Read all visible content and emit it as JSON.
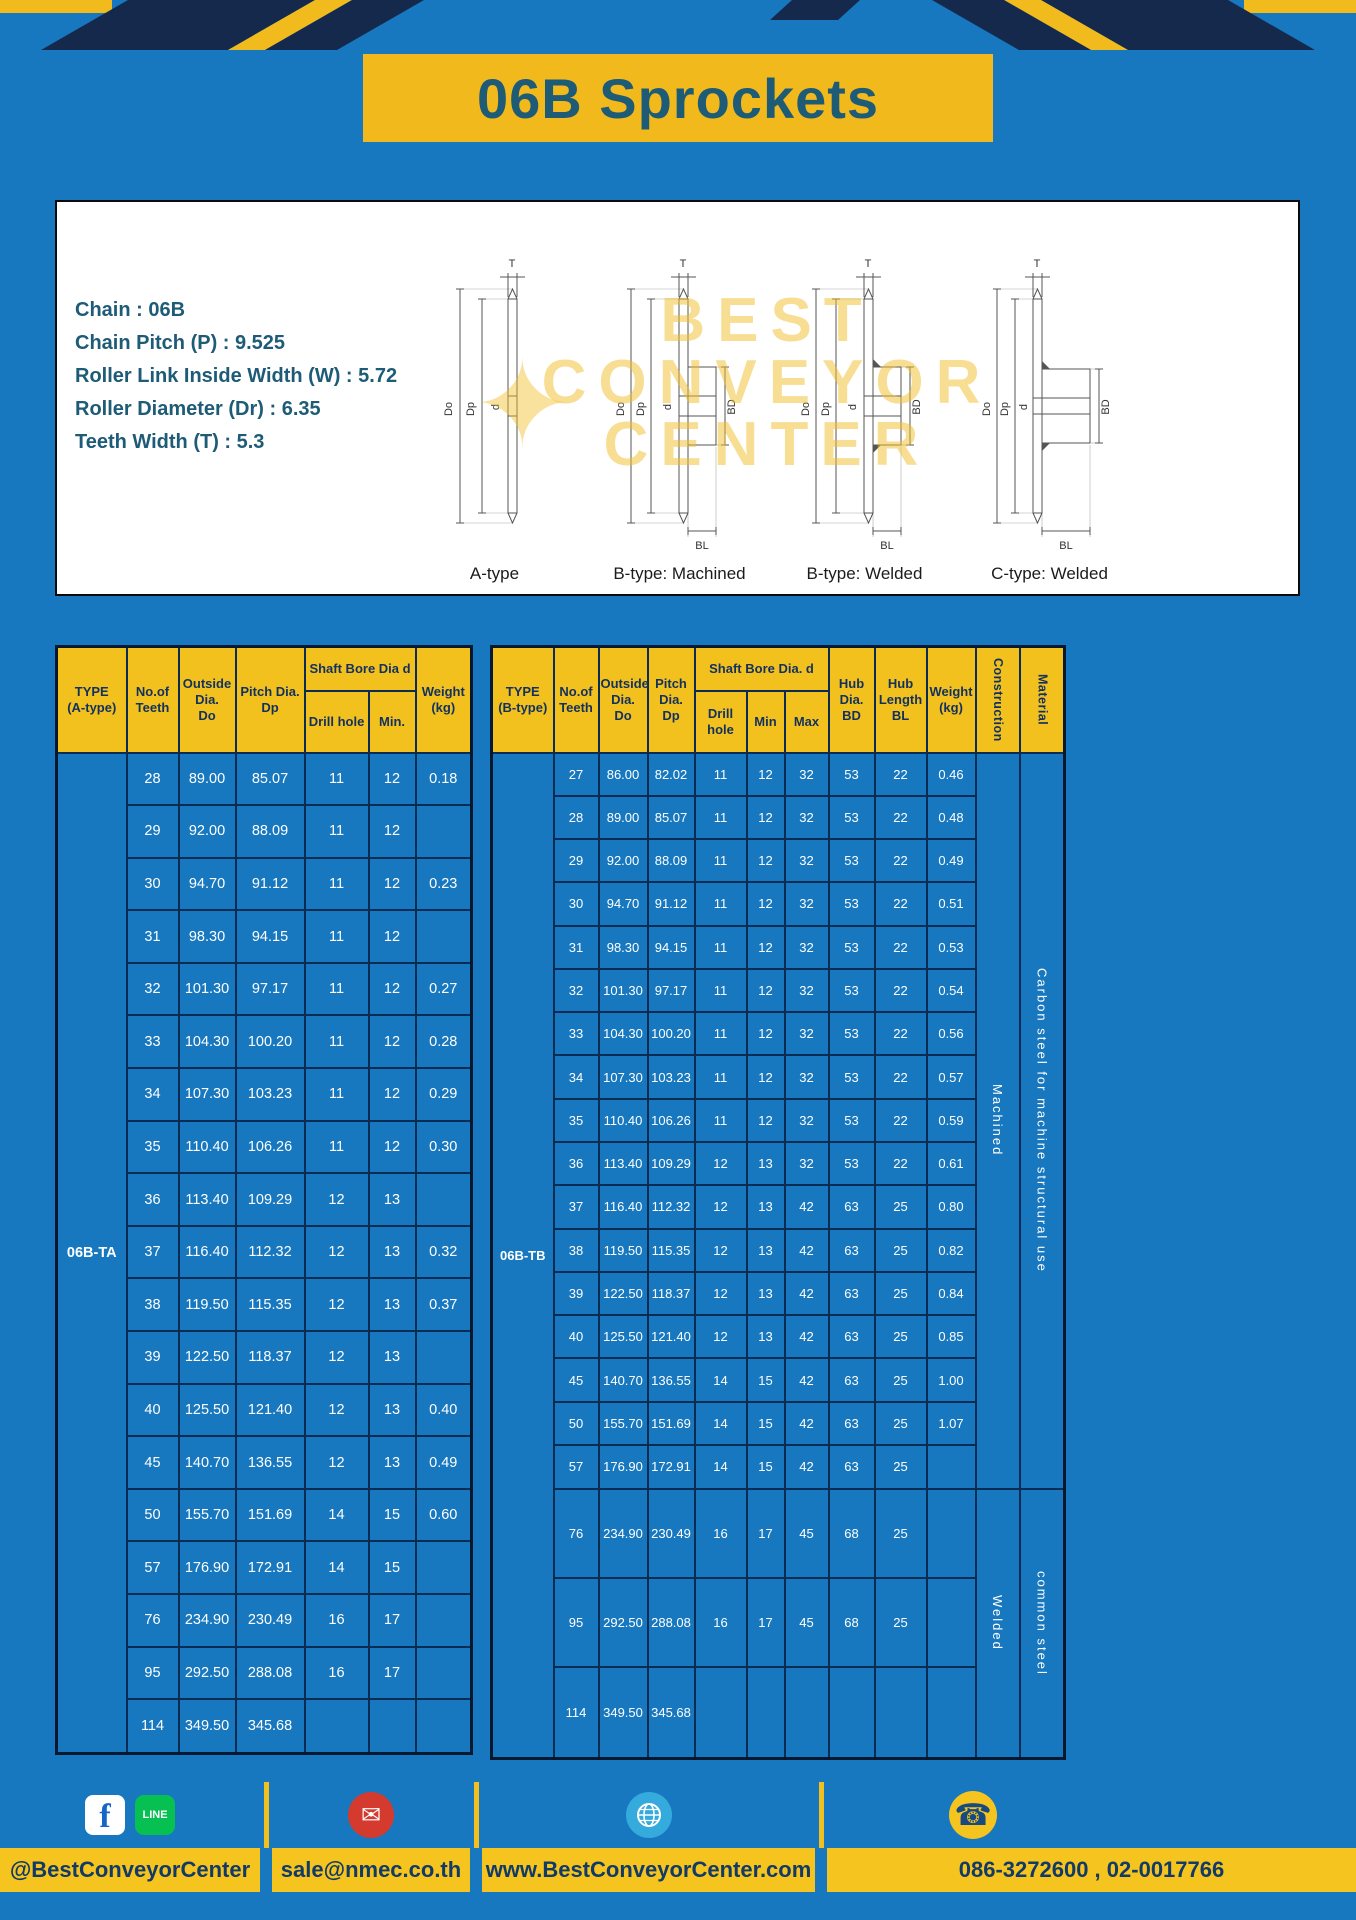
{
  "page": {
    "title": "06B Sprockets"
  },
  "specs": {
    "lines": [
      "Chain : 06B",
      "Chain Pitch (P) : 9.525",
      "Roller Link Inside Width (W) : 5.72",
      "Roller Diameter (Dr) : 6.35",
      "Teeth Width (T) : 5.3"
    ]
  },
  "drawings": {
    "captions": [
      "A-type",
      "B-type: Machined",
      "B-type: Welded",
      "C-type: Welded"
    ],
    "dim": {
      "t": "T",
      "do": "Do",
      "dp": "Dp",
      "d": "d",
      "bd": "BD",
      "bl": "BL"
    },
    "watermark": [
      "BEST",
      "CONVEYOR",
      "CENTER"
    ]
  },
  "table_a": {
    "type_label": "06B-TA",
    "headers": {
      "type": "TYPE\n(A-type)",
      "teeth": "No.of\nTeeth",
      "outside": "Outside\nDia.\nDo",
      "pitch": "Pitch Dia.\nDp",
      "bore_group": "Shaft Bore Dia d",
      "drill": "Drill hole",
      "min": "Min.",
      "weight": "Weight\n(kg)"
    },
    "rows": [
      [
        "28",
        "89.00",
        "85.07",
        "11",
        "12",
        "0.18"
      ],
      [
        "29",
        "92.00",
        "88.09",
        "11",
        "12",
        ""
      ],
      [
        "30",
        "94.70",
        "91.12",
        "11",
        "12",
        "0.23"
      ],
      [
        "31",
        "98.30",
        "94.15",
        "11",
        "12",
        ""
      ],
      [
        "32",
        "101.30",
        "97.17",
        "11",
        "12",
        "0.27"
      ],
      [
        "33",
        "104.30",
        "100.20",
        "11",
        "12",
        "0.28"
      ],
      [
        "34",
        "107.30",
        "103.23",
        "11",
        "12",
        "0.29"
      ],
      [
        "35",
        "110.40",
        "106.26",
        "11",
        "12",
        "0.30"
      ],
      [
        "36",
        "113.40",
        "109.29",
        "12",
        "13",
        ""
      ],
      [
        "37",
        "116.40",
        "112.32",
        "12",
        "13",
        "0.32"
      ],
      [
        "38",
        "119.50",
        "115.35",
        "12",
        "13",
        "0.37"
      ],
      [
        "39",
        "122.50",
        "118.37",
        "12",
        "13",
        ""
      ],
      [
        "40",
        "125.50",
        "121.40",
        "12",
        "13",
        "0.40"
      ],
      [
        "45",
        "140.70",
        "136.55",
        "12",
        "13",
        "0.49"
      ],
      [
        "50",
        "155.70",
        "151.69",
        "14",
        "15",
        "0.60"
      ],
      [
        "57",
        "176.90",
        "172.91",
        "14",
        "15",
        ""
      ],
      [
        "76",
        "234.90",
        "230.49",
        "16",
        "17",
        ""
      ],
      [
        "95",
        "292.50",
        "288.08",
        "16",
        "17",
        ""
      ],
      [
        "114",
        "349.50",
        "345.68",
        "",
        "",
        ""
      ]
    ]
  },
  "table_b": {
    "type_label": "06B-TB",
    "headers": {
      "type": "TYPE\n(B-type)",
      "teeth": "No.of\nTeeth",
      "outside": "Outside\nDia.\nDo",
      "pitch": "Pitch\nDia.\nDp",
      "bore_group": "Shaft Bore Dia. d",
      "drill": "Drill hole",
      "min": "Min",
      "max": "Max",
      "hub_dia": "Hub\nDia.\nBD",
      "hub_len": "Hub\nLength\nBL",
      "weight": "Weight\n(kg)",
      "construction": "Construction",
      "material": "Material"
    },
    "rows": [
      [
        "27",
        "86.00",
        "82.02",
        "11",
        "12",
        "32",
        "53",
        "22",
        "0.46"
      ],
      [
        "28",
        "89.00",
        "85.07",
        "11",
        "12",
        "32",
        "53",
        "22",
        "0.48"
      ],
      [
        "29",
        "92.00",
        "88.09",
        "11",
        "12",
        "32",
        "53",
        "22",
        "0.49"
      ],
      [
        "30",
        "94.70",
        "91.12",
        "11",
        "12",
        "32",
        "53",
        "22",
        "0.51"
      ],
      [
        "31",
        "98.30",
        "94.15",
        "11",
        "12",
        "32",
        "53",
        "22",
        "0.53"
      ],
      [
        "32",
        "101.30",
        "97.17",
        "11",
        "12",
        "32",
        "53",
        "22",
        "0.54"
      ],
      [
        "33",
        "104.30",
        "100.20",
        "11",
        "12",
        "32",
        "53",
        "22",
        "0.56"
      ],
      [
        "34",
        "107.30",
        "103.23",
        "11",
        "12",
        "32",
        "53",
        "22",
        "0.57"
      ],
      [
        "35",
        "110.40",
        "106.26",
        "11",
        "12",
        "32",
        "53",
        "22",
        "0.59"
      ],
      [
        "36",
        "113.40",
        "109.29",
        "12",
        "13",
        "32",
        "53",
        "22",
        "0.61"
      ],
      [
        "37",
        "116.40",
        "112.32",
        "12",
        "13",
        "42",
        "63",
        "25",
        "0.80"
      ],
      [
        "38",
        "119.50",
        "115.35",
        "12",
        "13",
        "42",
        "63",
        "25",
        "0.82"
      ],
      [
        "39",
        "122.50",
        "118.37",
        "12",
        "13",
        "42",
        "63",
        "25",
        "0.84"
      ],
      [
        "40",
        "125.50",
        "121.40",
        "12",
        "13",
        "42",
        "63",
        "25",
        "0.85"
      ],
      [
        "45",
        "140.70",
        "136.55",
        "14",
        "15",
        "42",
        "63",
        "25",
        "1.00"
      ],
      [
        "50",
        "155.70",
        "151.69",
        "14",
        "15",
        "42",
        "63",
        "25",
        "1.07"
      ],
      [
        "57",
        "176.90",
        "172.91",
        "14",
        "15",
        "42",
        "63",
        "25",
        ""
      ],
      [
        "76",
        "234.90",
        "230.49",
        "16",
        "17",
        "45",
        "68",
        "25",
        ""
      ],
      [
        "95",
        "292.50",
        "288.08",
        "16",
        "17",
        "45",
        "68",
        "25",
        ""
      ],
      [
        "114",
        "349.50",
        "345.68",
        "",
        "",
        "",
        "",
        "",
        ""
      ]
    ],
    "construction_groups": [
      {
        "label": "Machined",
        "span": 17
      },
      {
        "label": "Welded",
        "span": 3
      }
    ],
    "material_groups": [
      {
        "label": "Carbon steel for machine structural use",
        "span": 17
      },
      {
        "label": "common steel",
        "span": 3
      }
    ]
  },
  "footer": {
    "social_handle": "@BestConveyorCenter",
    "email": "sale@nmec.co.th",
    "website": "www.BestConveyorCenter.com",
    "phone": "086-3272600 , 02-0017766"
  },
  "icons": {
    "facebook": "f",
    "line": "LINE",
    "mail": "✉",
    "phone": "☎",
    "watermark_star": "✦"
  },
  "colors": {
    "page_blue": "#1778bf",
    "accent_yellow": "#f2c01e",
    "deco_navy": "#15294d",
    "title_teal": "#1d5b77",
    "header_text_navy": "#12315e",
    "footer_text_navy": "#123a66",
    "cell_border_navy": "#0a2c52"
  }
}
